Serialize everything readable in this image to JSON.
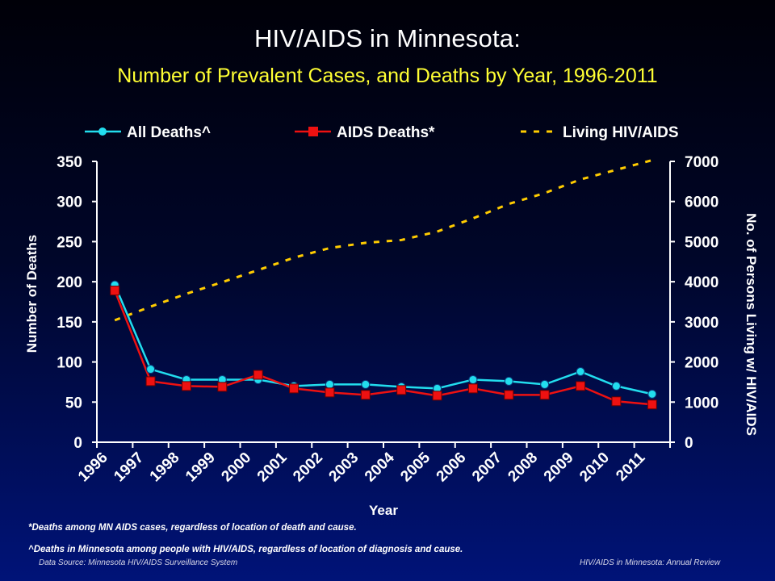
{
  "header": {
    "title": "HIV/AIDS in Minnesota:",
    "subtitle": "Number of Prevalent Cases, and Deaths by Year, 1996-2011"
  },
  "footnotes": {
    "aids_deaths": "*Deaths among MN AIDS cases, regardless of location of death and cause.",
    "all_deaths": "^Deaths in Minnesota among people with HIV/AIDS, regardless of location of diagnosis and cause."
  },
  "footer": {
    "source_prefix": "Data Source: ",
    "source_value": "Minnesota HIV/AIDS Surveillance System",
    "report": "HIV/AIDS in Minnesota: Annual Review"
  },
  "colors": {
    "all_deaths": "#22ddee",
    "aids_deaths": "#ee1111",
    "living": "#ffcc00",
    "axis": "#ffffff",
    "title": "#ffffff",
    "subtitle": "#ffff33"
  },
  "chart_data": {
    "type": "line",
    "categories": [
      "1996",
      "1997",
      "1998",
      "1999",
      "2000",
      "2001",
      "2002",
      "2003",
      "2004",
      "2005",
      "2006",
      "2007",
      "2008",
      "2009",
      "2010",
      "2011"
    ],
    "xlabel": "Year",
    "ylabel": "Number of Deaths",
    "y2label": "No. of Persons Living w/ HIV/AIDS",
    "ylim": [
      0,
      350
    ],
    "y2lim": [
      0,
      7000
    ],
    "yticks": [
      "0",
      "50",
      "100",
      "150",
      "200",
      "250",
      "300",
      "350"
    ],
    "y2ticks": [
      "0",
      "1000",
      "2000",
      "3000",
      "4000",
      "5000",
      "6000",
      "7000"
    ],
    "grid": false,
    "legend_position": "top",
    "series": [
      {
        "name": "All Deaths^",
        "axis": "left",
        "style": "line-circle",
        "values": [
          196,
          91,
          78,
          78,
          78,
          70,
          72,
          72,
          69,
          67,
          78,
          76,
          72,
          88,
          70,
          60
        ]
      },
      {
        "name": "AIDS Deaths*",
        "axis": "left",
        "style": "line-square",
        "values": [
          189,
          76,
          70,
          69,
          84,
          67,
          62,
          59,
          65,
          58,
          67,
          59,
          59,
          70,
          51,
          47
        ]
      },
      {
        "name": "Living HIV/AIDS",
        "axis": "right",
        "style": "dashed",
        "values": [
          3040,
          3380,
          3700,
          3990,
          4290,
          4600,
          4840,
          4970,
          5040,
          5250,
          5580,
          5940,
          6210,
          6550,
          6790,
          7030
        ]
      }
    ]
  }
}
